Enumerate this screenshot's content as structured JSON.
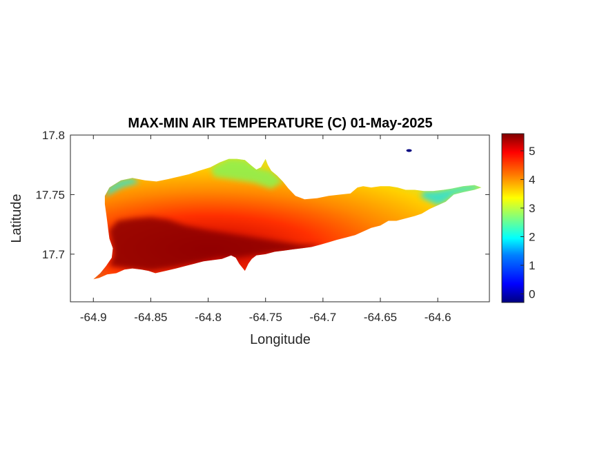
{
  "chart_data": {
    "type": "heatmap",
    "title": "MAX-MIN AIR TEMPERATURE (C) 01-May-2025",
    "xlabel": "Longitude",
    "ylabel": "Latitude",
    "xlim": [
      -64.92,
      -64.555
    ],
    "ylim": [
      17.66,
      17.8
    ],
    "xticks": [
      -64.9,
      -64.85,
      -64.8,
      -64.75,
      -64.7,
      -64.65,
      -64.6
    ],
    "xtick_labels": [
      "-64.9",
      "-64.85",
      "-64.8",
      "-64.75",
      "-64.7",
      "-64.65",
      "-64.6"
    ],
    "yticks": [
      17.7,
      17.75,
      17.8
    ],
    "ytick_labels": [
      "17.7",
      "17.75",
      "17.8"
    ],
    "grid": false,
    "colormap": "jet",
    "colorbar": {
      "clim": [
        -0.3,
        5.6
      ],
      "ticks": [
        0,
        1,
        2,
        3,
        4,
        5
      ],
      "tick_labels": [
        "0",
        "1",
        "2",
        "3",
        "4",
        "5"
      ],
      "location": "right"
    },
    "colors": [
      "#00007f",
      "#0000ff",
      "#007fff",
      "#00ffff",
      "#7fff7f",
      "#ffff00",
      "#ff7f00",
      "#ff0000",
      "#7f0000"
    ],
    "island_outline": [
      [
        -64.9,
        17.679
      ],
      [
        -64.894,
        17.684
      ],
      [
        -64.889,
        17.69
      ],
      [
        -64.884,
        17.697
      ],
      [
        -64.883,
        17.705
      ],
      [
        -64.886,
        17.713
      ],
      [
        -64.887,
        17.72
      ],
      [
        -64.888,
        17.728
      ],
      [
        -64.889,
        17.735
      ],
      [
        -64.89,
        17.742
      ],
      [
        -64.89,
        17.749
      ],
      [
        -64.886,
        17.756
      ],
      [
        -64.876,
        17.762
      ],
      [
        -64.866,
        17.764
      ],
      [
        -64.855,
        17.762
      ],
      [
        -64.845,
        17.761
      ],
      [
        -64.835,
        17.763
      ],
      [
        -64.826,
        17.765
      ],
      [
        -64.817,
        17.767
      ],
      [
        -64.808,
        17.77
      ],
      [
        -64.798,
        17.773
      ],
      [
        -64.79,
        17.777
      ],
      [
        -64.782,
        17.78
      ],
      [
        -64.775,
        17.78
      ],
      [
        -64.768,
        17.779
      ],
      [
        -64.762,
        17.774
      ],
      [
        -64.758,
        17.771
      ],
      [
        -64.754,
        17.773
      ],
      [
        -64.75,
        17.78
      ],
      [
        -64.748,
        17.775
      ],
      [
        -64.745,
        17.77
      ],
      [
        -64.74,
        17.766
      ],
      [
        -64.735,
        17.761
      ],
      [
        -64.73,
        17.755
      ],
      [
        -64.724,
        17.749
      ],
      [
        -64.716,
        17.746
      ],
      [
        -64.705,
        17.747
      ],
      [
        -64.695,
        17.749
      ],
      [
        -64.685,
        17.75
      ],
      [
        -64.676,
        17.751
      ],
      [
        -64.67,
        17.756
      ],
      [
        -64.665,
        17.757
      ],
      [
        -64.658,
        17.756
      ],
      [
        -64.65,
        17.757
      ],
      [
        -64.642,
        17.757
      ],
      [
        -64.635,
        17.756
      ],
      [
        -64.628,
        17.754
      ],
      [
        -64.62,
        17.754
      ],
      [
        -64.612,
        17.753
      ],
      [
        -64.604,
        17.753
      ],
      [
        -64.595,
        17.754
      ],
      [
        -64.588,
        17.755
      ],
      [
        -64.578,
        17.757
      ],
      [
        -64.568,
        17.758
      ],
      [
        -64.562,
        17.756
      ],
      [
        -64.568,
        17.754
      ],
      [
        -64.578,
        17.752
      ],
      [
        -64.586,
        17.75
      ],
      [
        -64.593,
        17.744
      ],
      [
        -64.6,
        17.741
      ],
      [
        -64.607,
        17.738
      ],
      [
        -64.614,
        17.734
      ],
      [
        -64.62,
        17.732
      ],
      [
        -64.628,
        17.73
      ],
      [
        -64.636,
        17.728
      ],
      [
        -64.643,
        17.728
      ],
      [
        -64.65,
        17.724
      ],
      [
        -64.658,
        17.722
      ],
      [
        -64.665,
        17.719
      ],
      [
        -64.672,
        17.716
      ],
      [
        -64.68,
        17.714
      ],
      [
        -64.688,
        17.712
      ],
      [
        -64.695,
        17.71
      ],
      [
        -64.702,
        17.708
      ],
      [
        -64.71,
        17.706
      ],
      [
        -64.718,
        17.705
      ],
      [
        -64.726,
        17.704
      ],
      [
        -64.734,
        17.703
      ],
      [
        -64.742,
        17.702
      ],
      [
        -64.75,
        17.7
      ],
      [
        -64.758,
        17.699
      ],
      [
        -64.762,
        17.696
      ],
      [
        -64.765,
        17.692
      ],
      [
        -64.768,
        17.686
      ],
      [
        -64.773,
        17.692
      ],
      [
        -64.776,
        17.697
      ],
      [
        -64.78,
        17.699
      ],
      [
        -64.788,
        17.696
      ],
      [
        -64.796,
        17.695
      ],
      [
        -64.804,
        17.694
      ],
      [
        -64.812,
        17.692
      ],
      [
        -64.82,
        17.69
      ],
      [
        -64.828,
        17.688
      ],
      [
        -64.837,
        17.686
      ],
      [
        -64.846,
        17.684
      ],
      [
        -64.852,
        17.686
      ],
      [
        -64.858,
        17.687
      ],
      [
        -64.866,
        17.688
      ],
      [
        -64.873,
        17.687
      ],
      [
        -64.88,
        17.684
      ],
      [
        -64.888,
        17.683
      ],
      [
        -64.895,
        17.68
      ]
    ],
    "hot_core_outline": [
      [
        -64.886,
        17.69
      ],
      [
        -64.882,
        17.7
      ],
      [
        -64.884,
        17.71
      ],
      [
        -64.886,
        17.72
      ],
      [
        -64.879,
        17.728
      ],
      [
        -64.865,
        17.73
      ],
      [
        -64.85,
        17.731
      ],
      [
        -64.835,
        17.729
      ],
      [
        -64.82,
        17.724
      ],
      [
        -64.8,
        17.72
      ],
      [
        -64.78,
        17.717
      ],
      [
        -64.76,
        17.714
      ],
      [
        -64.74,
        17.711
      ],
      [
        -64.72,
        17.708
      ],
      [
        -64.7,
        17.708
      ],
      [
        -64.72,
        17.703
      ],
      [
        -64.745,
        17.701
      ],
      [
        -64.76,
        17.699
      ],
      [
        -64.775,
        17.697
      ],
      [
        -64.79,
        17.697
      ],
      [
        -64.81,
        17.693
      ],
      [
        -64.83,
        17.689
      ],
      [
        -64.85,
        17.686
      ],
      [
        -64.87,
        17.688
      ]
    ],
    "cool_west_outline": [
      [
        -64.89,
        17.748
      ],
      [
        -64.887,
        17.756
      ],
      [
        -64.877,
        17.762
      ],
      [
        -64.866,
        17.764
      ],
      [
        -64.86,
        17.76
      ],
      [
        -64.875,
        17.756
      ]
    ],
    "cool_sw_tip": [
      [
        -64.9,
        17.679
      ],
      [
        -64.894,
        17.684
      ],
      [
        -64.889,
        17.69
      ],
      [
        -64.893,
        17.686
      ]
    ],
    "cool_east_outline": [
      [
        -64.6,
        17.741
      ],
      [
        -64.593,
        17.744
      ],
      [
        -64.586,
        17.75
      ],
      [
        -64.578,
        17.752
      ],
      [
        -64.568,
        17.754
      ],
      [
        -64.562,
        17.756
      ],
      [
        -64.568,
        17.758
      ],
      [
        -64.578,
        17.757
      ],
      [
        -64.588,
        17.755
      ],
      [
        -64.6,
        17.753
      ],
      [
        -64.612,
        17.753
      ],
      [
        -64.615,
        17.748
      ]
    ],
    "cool_north_outline": [
      [
        -64.798,
        17.773
      ],
      [
        -64.782,
        17.78
      ],
      [
        -64.768,
        17.779
      ],
      [
        -64.755,
        17.772
      ],
      [
        -64.745,
        17.77
      ],
      [
        -64.735,
        17.761
      ],
      [
        -64.745,
        17.755
      ],
      [
        -64.76,
        17.76
      ],
      [
        -64.78,
        17.763
      ],
      [
        -64.795,
        17.765
      ]
    ],
    "cold_spot": [
      -64.625,
      17.787
    ]
  }
}
